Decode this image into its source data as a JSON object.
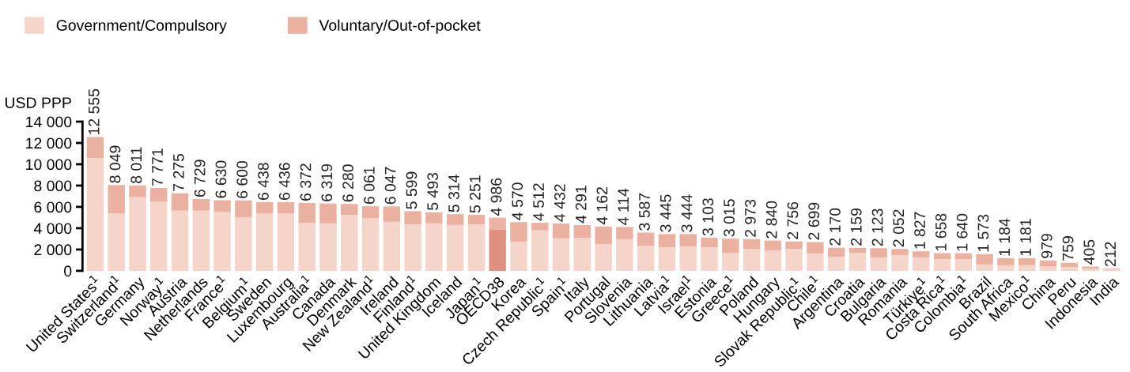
{
  "chart_data": {
    "type": "bar",
    "stacked": true,
    "ylabel": "USD PPP",
    "legend": "top left",
    "grid": false,
    "categories": [
      "United States$^{1}$",
      "Switzerland$^{1}$",
      "Germany",
      "Norway$^{1}$",
      "Austria",
      "Netherlands",
      "France$^{1}$",
      "Belgium$^{1}$",
      "Sweden",
      "Luxembourg",
      "Australia$^{1}$",
      "Canada",
      "Denmark",
      "New Zealand$^{1}$",
      "Ireland",
      "Finland$^{1}$",
      "United Kingdom",
      "Iceland",
      "Japan$^{1}$",
      "OECD38",
      "Korea",
      "Czech Republic$^{1}$",
      "Spain$^{1}$",
      "Italy",
      "Portugal",
      "Slovenia",
      "Lithuania",
      "Latvia$^{1}$",
      "Israel$^{1}$",
      "Estonia",
      "Greece$^{1}$",
      "Poland",
      "Hungary",
      "Slovak Republic$^{1}$",
      "Chile$^{1}$",
      "Argentina",
      "Croatia",
      "Bulgaria",
      "Romania",
      "Türkiye$^{1}$",
      "Costa Rica$^{1}$",
      "Colombia$^{1}$",
      "Brazil",
      "South Africa",
      "Mexico$^{1}$",
      "China",
      "Peru",
      "Indonesia",
      "India"
    ],
    "series": [
      {
        "name": "Government/Compulsory",
        "color": "#f5d5ca",
        "colors": [
          "#f5d5ca",
          "#f5d5ca",
          "#f5d5ca",
          "#f5d5ca",
          "#f5d5ca",
          "#f5d5ca",
          "#f5d5ca",
          "#f5d5ca",
          "#f5d5ca",
          "#f5d5ca",
          "#f5d5ca",
          "#f5d5ca",
          "#f5d5ca",
          "#f5d5ca",
          "#f5d5ca",
          "#f5d5ca",
          "#f5d5ca",
          "#f5d5ca",
          "#f5d5ca",
          "#e0907f",
          "#f5d5ca",
          "#f5d5ca",
          "#f5d5ca",
          "#f5d5ca",
          "#f5d5ca",
          "#f5d5ca",
          "#f5d5ca",
          "#f5d5ca",
          "#f5d5ca",
          "#f5d5ca",
          "#f5d5ca",
          "#f5d5ca",
          "#f5d5ca",
          "#f5d5ca",
          "#f5d5ca",
          "#f5d5ca",
          "#f5d5ca",
          "#f5d5ca",
          "#f5d5ca",
          "#f5d5ca",
          "#f5d5ca",
          "#f5d5ca",
          "#f5d5ca",
          "#f5d5ca",
          "#f5d5ca",
          "#f5d5ca",
          "#f5d5ca",
          "#f5d5ca",
          "#f5d5ca"
        ],
        "values": [
          10600,
          5400,
          6900,
          6500,
          5650,
          5650,
          5550,
          5000,
          5400,
          5400,
          4500,
          4450,
          5250,
          4950,
          4600,
          4350,
          4450,
          4300,
          4350,
          3850,
          2750,
          3800,
          3050,
          3100,
          2500,
          2950,
          2350,
          2200,
          2300,
          2200,
          1700,
          2050,
          1900,
          2050,
          1630,
          1330,
          1700,
          1260,
          1480,
          1260,
          1100,
          1100,
          600,
          520,
          520,
          440,
          370,
          200,
          150
        ]
      },
      {
        "name": "Voluntary/Out-of-pocket",
        "color": "#eab0a0",
        "colors": [
          "#eab0a0",
          "#eab0a0",
          "#eab0a0",
          "#eab0a0",
          "#eab0a0",
          "#eab0a0",
          "#eab0a0",
          "#eab0a0",
          "#eab0a0",
          "#eab0a0",
          "#eab0a0",
          "#eab0a0",
          "#eab0a0",
          "#eab0a0",
          "#eab0a0",
          "#eab0a0",
          "#eab0a0",
          "#eab0a0",
          "#eab0a0",
          "#ecb2a3",
          "#eab0a0",
          "#eab0a0",
          "#eab0a0",
          "#eab0a0",
          "#eab0a0",
          "#eab0a0",
          "#eab0a0",
          "#eab0a0",
          "#eab0a0",
          "#eab0a0",
          "#eab0a0",
          "#eab0a0",
          "#eab0a0",
          "#eab0a0",
          "#eab0a0",
          "#eab0a0",
          "#eab0a0",
          "#eab0a0",
          "#eab0a0",
          "#eab0a0",
          "#eab0a0",
          "#eab0a0",
          "#eab0a0",
          "#eab0a0",
          "#eab0a0",
          "#eab0a0",
          "#eab0a0",
          "#eab0a0",
          "#eab0a0"
        ],
        "values": [
          1955,
          2649,
          1111,
          1271,
          1625,
          1079,
          1080,
          1600,
          1038,
          1036,
          1872,
          1869,
          1030,
          1111,
          1447,
          1249,
          1043,
          1014,
          901,
          1136,
          1820,
          712,
          1382,
          1191,
          1662,
          1164,
          1237,
          1245,
          1144,
          903,
          1315,
          923,
          940,
          706,
          1069,
          840,
          459,
          863,
          572,
          567,
          558,
          540,
          973,
          664,
          661,
          539,
          389,
          205,
          62
        ]
      }
    ],
    "totals": [
      "12 555",
      "8 049",
      "8 011",
      "7 771",
      "7 275",
      "6 729",
      "6 630",
      "6 600",
      "6 438",
      "6 436",
      "6 372",
      "6 319",
      "6 280",
      "6 061",
      "6 047",
      "5 599",
      "5 493",
      "5 314",
      "5 251",
      "4 986",
      "4 570",
      "4 512",
      "4 432",
      "4 291",
      "4 162",
      "4 114",
      "3 587",
      "3 445",
      "3 444",
      "3 103",
      "3 015",
      "2 973",
      "2 840",
      "2 756",
      "2 699",
      "2 170",
      "2 159",
      "2 123",
      "2 052",
      "1 827",
      "1 658",
      "1 640",
      "1 573",
      "1 184",
      "1 181",
      "979",
      "759",
      "405",
      "212"
    ],
    "ylim": [
      0,
      14000
    ],
    "yticks": [
      0,
      {
        "value": 2000,
        "label": "2 000"
      },
      {
        "value": 4000,
        "label": "4 000"
      },
      {
        "value": 6000,
        "label": "6 000"
      },
      {
        "value": 8000,
        "label": "8 000"
      },
      {
        "value": 10000,
        "label": "10 000"
      },
      {
        "value": 12000,
        "label": "12 000"
      },
      {
        "value": 14000,
        "label": "14 000"
      }
    ]
  }
}
